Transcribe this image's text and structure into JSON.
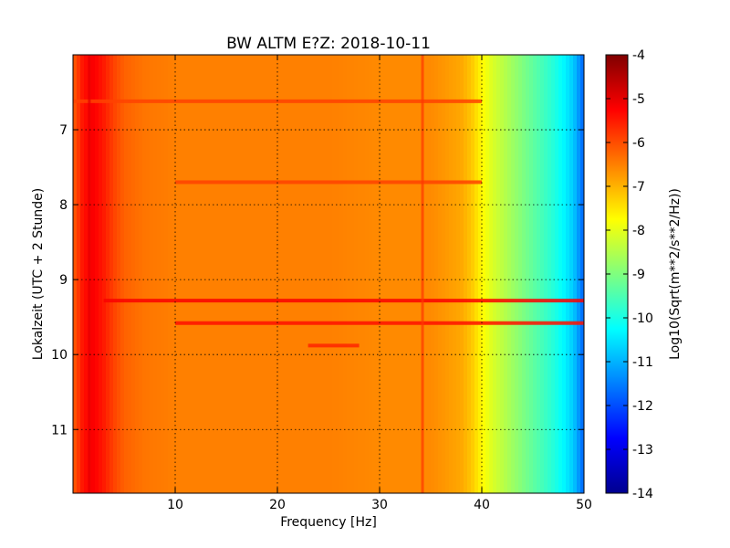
{
  "chart_data": {
    "type": "heatmap",
    "title": "BW ALTM E?Z: 2018-10-11",
    "xlabel": "Frequency [Hz]",
    "ylabel": "Lokalzeit (UTC + 2 Stunde)",
    "xlim": [
      0,
      50
    ],
    "ylim": [
      11.85,
      6.0
    ],
    "x_ticks": [
      10,
      20,
      30,
      40,
      50
    ],
    "y_ticks": [
      7,
      8,
      9,
      10,
      11
    ],
    "grid": true,
    "colormap": "jet",
    "colorbar": {
      "label": "Log10(Sqrt(m**2/s**2/Hz))",
      "range": [
        -14,
        -4
      ],
      "ticks": [
        -4,
        -5,
        -6,
        -7,
        -8,
        -9,
        -10,
        -11,
        -12,
        -13,
        -14
      ]
    },
    "baseline_profile": {
      "frequency_hz": [
        0,
        1,
        2,
        3,
        4,
        5,
        7,
        10,
        15,
        20,
        25,
        30,
        35,
        38,
        39,
        40,
        41,
        42,
        43,
        44,
        45,
        46,
        47,
        48,
        49,
        49.5,
        50
      ],
      "log_amplitude": [
        -6.2,
        -5.4,
        -5.2,
        -5.5,
        -5.9,
        -6.2,
        -6.4,
        -6.5,
        -6.5,
        -6.5,
        -6.5,
        -6.6,
        -6.6,
        -6.9,
        -7.2,
        -7.7,
        -8.1,
        -8.4,
        -8.7,
        -9.0,
        -9.3,
        -9.6,
        -9.9,
        -10.3,
        -10.8,
        -11.3,
        -11.8
      ]
    },
    "horizontal_features": [
      {
        "time": 6.62,
        "f_start": 0,
        "f_end": 40,
        "log_amplitude": -5.9
      },
      {
        "time": 7.7,
        "f_start": 10,
        "f_end": 40,
        "log_amplitude": -5.9
      },
      {
        "time": 9.28,
        "f_start": 3,
        "f_end": 50,
        "log_amplitude": -5.2
      },
      {
        "time": 9.58,
        "f_start": 10,
        "f_end": 50,
        "log_amplitude": -5.4
      },
      {
        "time": 9.88,
        "f_start": 23,
        "f_end": 28,
        "log_amplitude": -5.6
      }
    ],
    "vertical_features": [
      {
        "frequency": 34.2,
        "t_start": 6.0,
        "t_end": 11.85,
        "log_amplitude": -5.8
      },
      {
        "frequency": 1.6,
        "t_start": 6.0,
        "t_end": 11.85,
        "log_amplitude": -5.0
      }
    ]
  }
}
